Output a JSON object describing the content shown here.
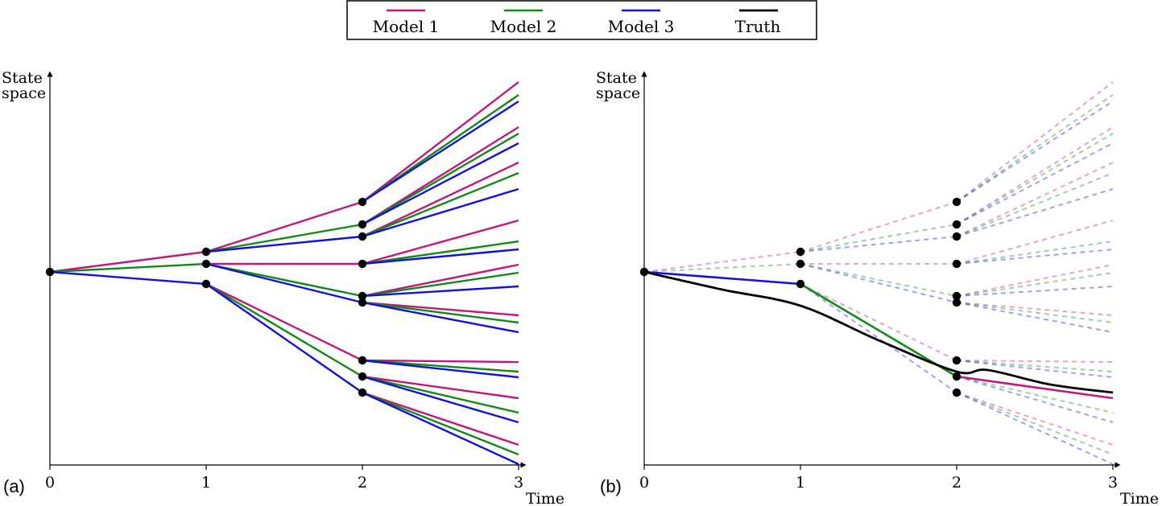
{
  "colors": {
    "model1": "#c0187f",
    "model2": "#118a11",
    "model3": "#1010e0",
    "truth": "#000000",
    "node": "#000000"
  },
  "legend": {
    "entries": [
      {
        "key": "model1",
        "label": "Model 1"
      },
      {
        "key": "model2",
        "label": "Model 2"
      },
      {
        "key": "model3",
        "label": "Model 3"
      },
      {
        "key": "truth",
        "label": "Truth"
      }
    ]
  },
  "axes": {
    "y_label_line1": "State",
    "y_label_line2": "space",
    "x_label": "Time",
    "ticks": [
      "0",
      "1",
      "2",
      "3"
    ]
  },
  "panels": {
    "a": {
      "tag": "(a)"
    },
    "b": {
      "tag": "(b)"
    }
  },
  "chart_data": {
    "type": "line",
    "description_units": "state values in arbitrary units, 0 = initial state, positive = up",
    "x": [
      0,
      1,
      2,
      3
    ],
    "root": {
      "t": 0,
      "value": 0
    },
    "level1_nodes": [
      {
        "model": "model1",
        "value": 0.25
      },
      {
        "model": "model2",
        "value": 0.1
      },
      {
        "model": "model3",
        "value": -0.15
      }
    ],
    "level2_nodes": [
      {
        "parent_model": "model1",
        "model": "model1",
        "value": 0.87
      },
      {
        "parent_model": "model1",
        "model": "model2",
        "value": 0.59
      },
      {
        "parent_model": "model1",
        "model": "model3",
        "value": 0.44
      },
      {
        "parent_model": "model2",
        "model": "model1",
        "value": 0.1
      },
      {
        "parent_model": "model2",
        "model": "model2",
        "value": -0.3
      },
      {
        "parent_model": "model2",
        "model": "model3",
        "value": -0.38
      },
      {
        "parent_model": "model3",
        "model": "model1",
        "value": -1.1
      },
      {
        "parent_model": "model3",
        "model": "model2",
        "value": -1.3
      },
      {
        "parent_model": "model3",
        "model": "model3",
        "value": -1.5
      }
    ],
    "level3_fan": {
      "model1": [
        2.36,
        1.8,
        1.36,
        0.64,
        0.09,
        -0.54,
        -1.12,
        -1.57,
        -2.15
      ],
      "model2": [
        2.2,
        1.72,
        1.23,
        0.38,
        -0.01,
        -0.63,
        -1.24,
        -1.75,
        -2.27
      ],
      "model3": [
        2.12,
        1.6,
        1.03,
        0.28,
        -0.18,
        -0.75,
        -1.31,
        -1.87,
        -2.39
      ]
    },
    "panel_b_selected_path": [
      {
        "t": 0,
        "value": 0,
        "model": "model3"
      },
      {
        "t": 1,
        "value": -0.15,
        "model": "model2"
      },
      {
        "t": 2,
        "value": -1.3,
        "model": "model1"
      },
      {
        "t": 3,
        "value": -1.57
      }
    ],
    "truth": [
      {
        "t": 0,
        "value": 0
      },
      {
        "t": 0.5,
        "value": -0.22
      },
      {
        "t": 1,
        "value": -0.42
      },
      {
        "t": 1.5,
        "value": -0.85
      },
      {
        "t": 2,
        "value": -1.24
      },
      {
        "t": 2.2,
        "value": -1.22
      },
      {
        "t": 2.6,
        "value": -1.4
      },
      {
        "t": 3,
        "value": -1.5
      }
    ]
  }
}
